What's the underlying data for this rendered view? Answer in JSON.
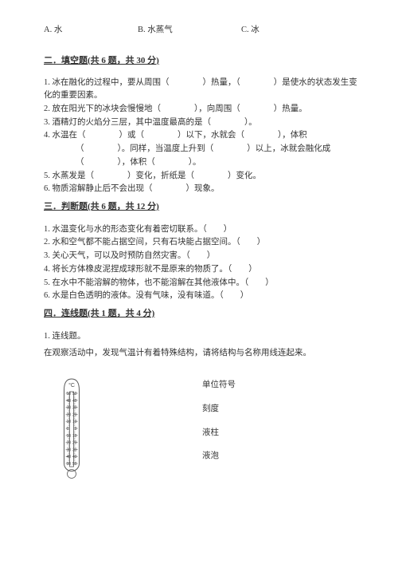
{
  "mc": {
    "a": "A. 水",
    "b": "B. 水蒸气",
    "c": "C. 冰"
  },
  "sections": {
    "fill": "二．填空题(共 6 题，共 30 分)",
    "judge": "三．判断题(共 6 题，共 12 分)",
    "match": "四．连线题(共 1 题，共 4 分)"
  },
  "fill": {
    "q1": "1. 冰在融化的过程中，要从周围（　　　　）热量，（　　　　）是使水的状态发生变化的重要因素。",
    "q2": "2. 放在阳光下的冰块会慢慢地（　　　　），向周围（　　　　）热量。",
    "q3": "3. 酒精灯的火焰分三层，其中温度最高的是（　　　　）。",
    "q4a": "4. 水温在（　　　　）或（　　　　）以下，水就会（　　　　），体积",
    "q4b": "（　　　　）。同样，当温度上升到（　　　　）以上，冰就会融化成",
    "q4c": "（　　　　），体积（　　　　）。",
    "q5": "5. 水蒸发是（　　　　）变化，折纸是（　　　　）变化。",
    "q6": "6. 物质溶解静止后不会出现（　　　　）现象。"
  },
  "judge": {
    "q1": "1. 水温变化与水的形态变化有着密切联系。（　　）",
    "q2": "2. 水和空气都不能占据空间，只有石块能占据空间。（　　）",
    "q3": "3. 关心天气，可以及时预防自然灾害。（　　）",
    "q4": "4. 将长方体橡皮泥捏成球形就不是原来的物质了。（　　）",
    "q5": "5. 在水中不能溶解的物体，也不能溶解在其他液体中。（　　）",
    "q6": "6. 水是白色透明的液体。没有气味，没有味道。（　　）"
  },
  "match": {
    "q1": "1. 连线题。",
    "prompt": "在观察活动中，发现气温计有着特殊结构，请将结构与名称用线连起来。",
    "labels": {
      "unit": "单位符号",
      "scale": "刻度",
      "column": "液柱",
      "bulb": "液泡"
    }
  },
  "therm": {
    "unit": "°C",
    "ticks": [
      "50",
      "40",
      "30",
      "20",
      "10",
      "0",
      "10",
      "20",
      "30",
      "40",
      "50"
    ],
    "outerStroke": "#5a5a5a",
    "innerStroke": "#5a5a5a",
    "textColor": "#444444",
    "bg": "#ffffff"
  }
}
